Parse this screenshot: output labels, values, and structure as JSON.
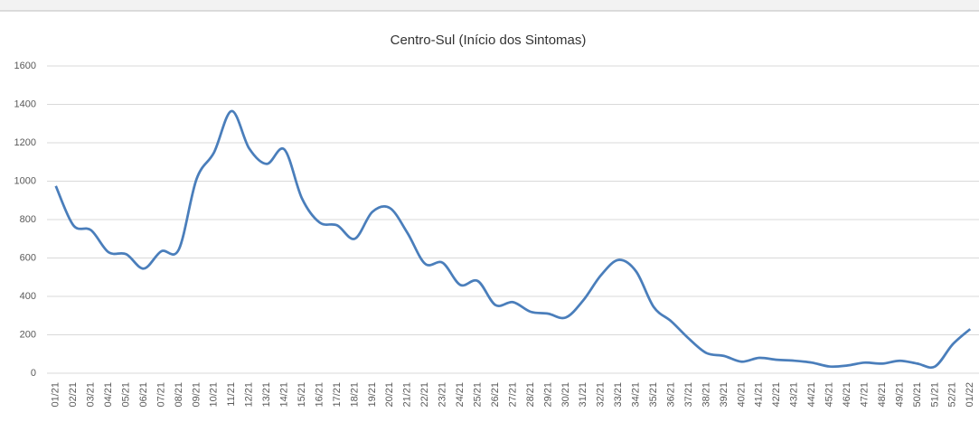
{
  "chart_data": {
    "type": "line",
    "title": "Centro-Sul (Início dos Sintomas)",
    "categories": [
      "01/21",
      "02/21",
      "03/21",
      "04/21",
      "05/21",
      "06/21",
      "07/21",
      "08/21",
      "09/21",
      "10/21",
      "11/21",
      "12/21",
      "13/21",
      "14/21",
      "15/21",
      "16/21",
      "17/21",
      "18/21",
      "19/21",
      "20/21",
      "21/21",
      "22/21",
      "23/21",
      "24/21",
      "25/21",
      "26/21",
      "27/21",
      "28/21",
      "29/21",
      "30/21",
      "31/21",
      "32/21",
      "33/21",
      "34/21",
      "35/21",
      "36/21",
      "37/21",
      "38/21",
      "39/21",
      "40/21",
      "41/21",
      "42/21",
      "43/21",
      "44/21",
      "45/21",
      "46/21",
      "47/21",
      "48/21",
      "49/21",
      "50/21",
      "51/21",
      "52/21",
      "01/22"
    ],
    "values": [
      975,
      770,
      745,
      630,
      620,
      545,
      635,
      645,
      1010,
      1150,
      1365,
      1170,
      1090,
      1165,
      910,
      785,
      770,
      700,
      840,
      860,
      730,
      570,
      575,
      460,
      480,
      355,
      370,
      320,
      310,
      290,
      380,
      510,
      590,
      530,
      345,
      270,
      180,
      105,
      90,
      60,
      80,
      70,
      65,
      55,
      35,
      40,
      55,
      50,
      65,
      50,
      35,
      150,
      230
    ],
    "color": "#4a7ebb",
    "ylim": [
      0,
      1600
    ],
    "yticks": [
      0,
      200,
      400,
      600,
      800,
      1000,
      1200,
      1400,
      1600
    ],
    "grid": true
  }
}
